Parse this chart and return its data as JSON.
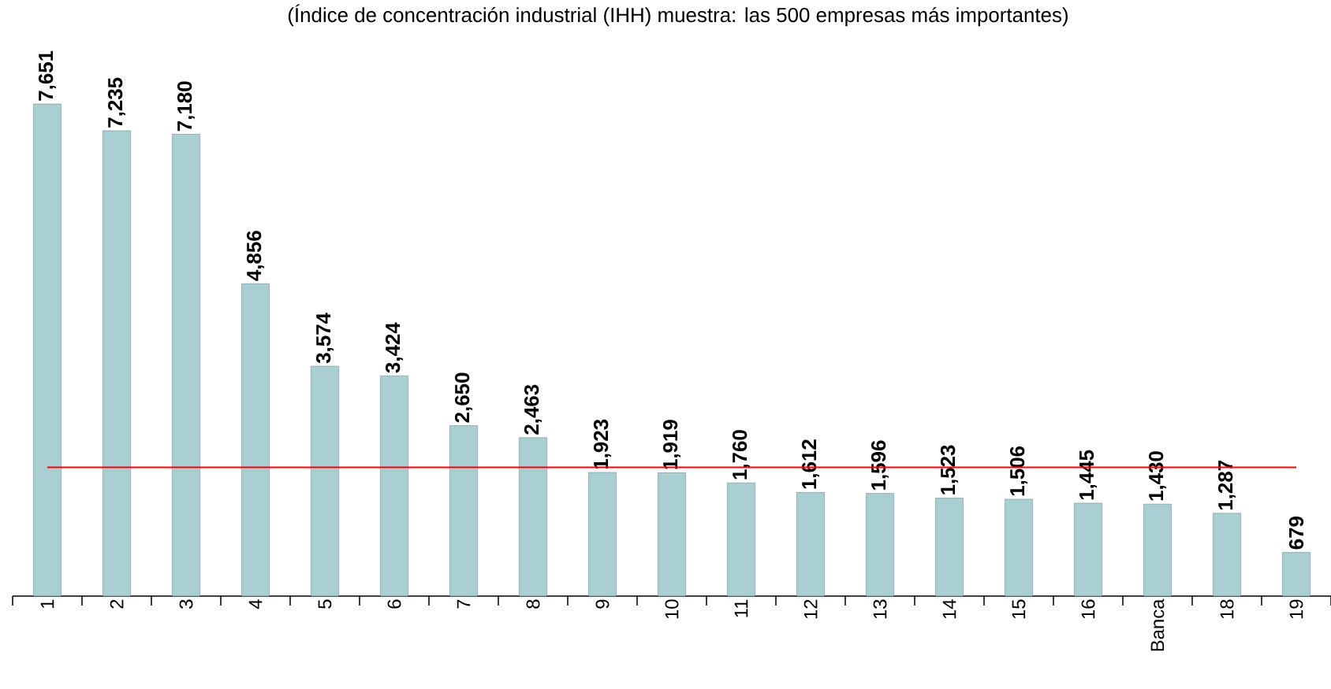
{
  "chart_data": {
    "type": "bar",
    "title": "(Índice de concentración industrial (IHH) muestra: las 500 empresas más importantes)",
    "categories": [
      "1",
      "2",
      "3",
      "4",
      "5",
      "6",
      "7",
      "8",
      "9",
      "10",
      "11",
      "12",
      "13",
      "14",
      "15",
      "16",
      "Banca",
      "18",
      "19"
    ],
    "values": [
      7651,
      7235,
      7180,
      4856,
      3574,
      3424,
      2650,
      2463,
      1923,
      1919,
      1760,
      1612,
      1596,
      1523,
      1506,
      1445,
      1430,
      1287,
      679
    ],
    "value_labels": [
      "7,651",
      "7,235",
      "7,180",
      "4,856",
      "3,574",
      "3,424",
      "2,650",
      "2,463",
      "1,923",
      "1,919",
      "1,760",
      "1,612",
      "1,596",
      "1,523",
      "1,506",
      "1,445",
      "1,430",
      "1,287",
      "679"
    ],
    "color": "#a9cfd2",
    "ref_lines": [
      {
        "axis": "y",
        "value": 2000,
        "color": "#ff0000"
      }
    ],
    "tick_labels": "x"
  }
}
